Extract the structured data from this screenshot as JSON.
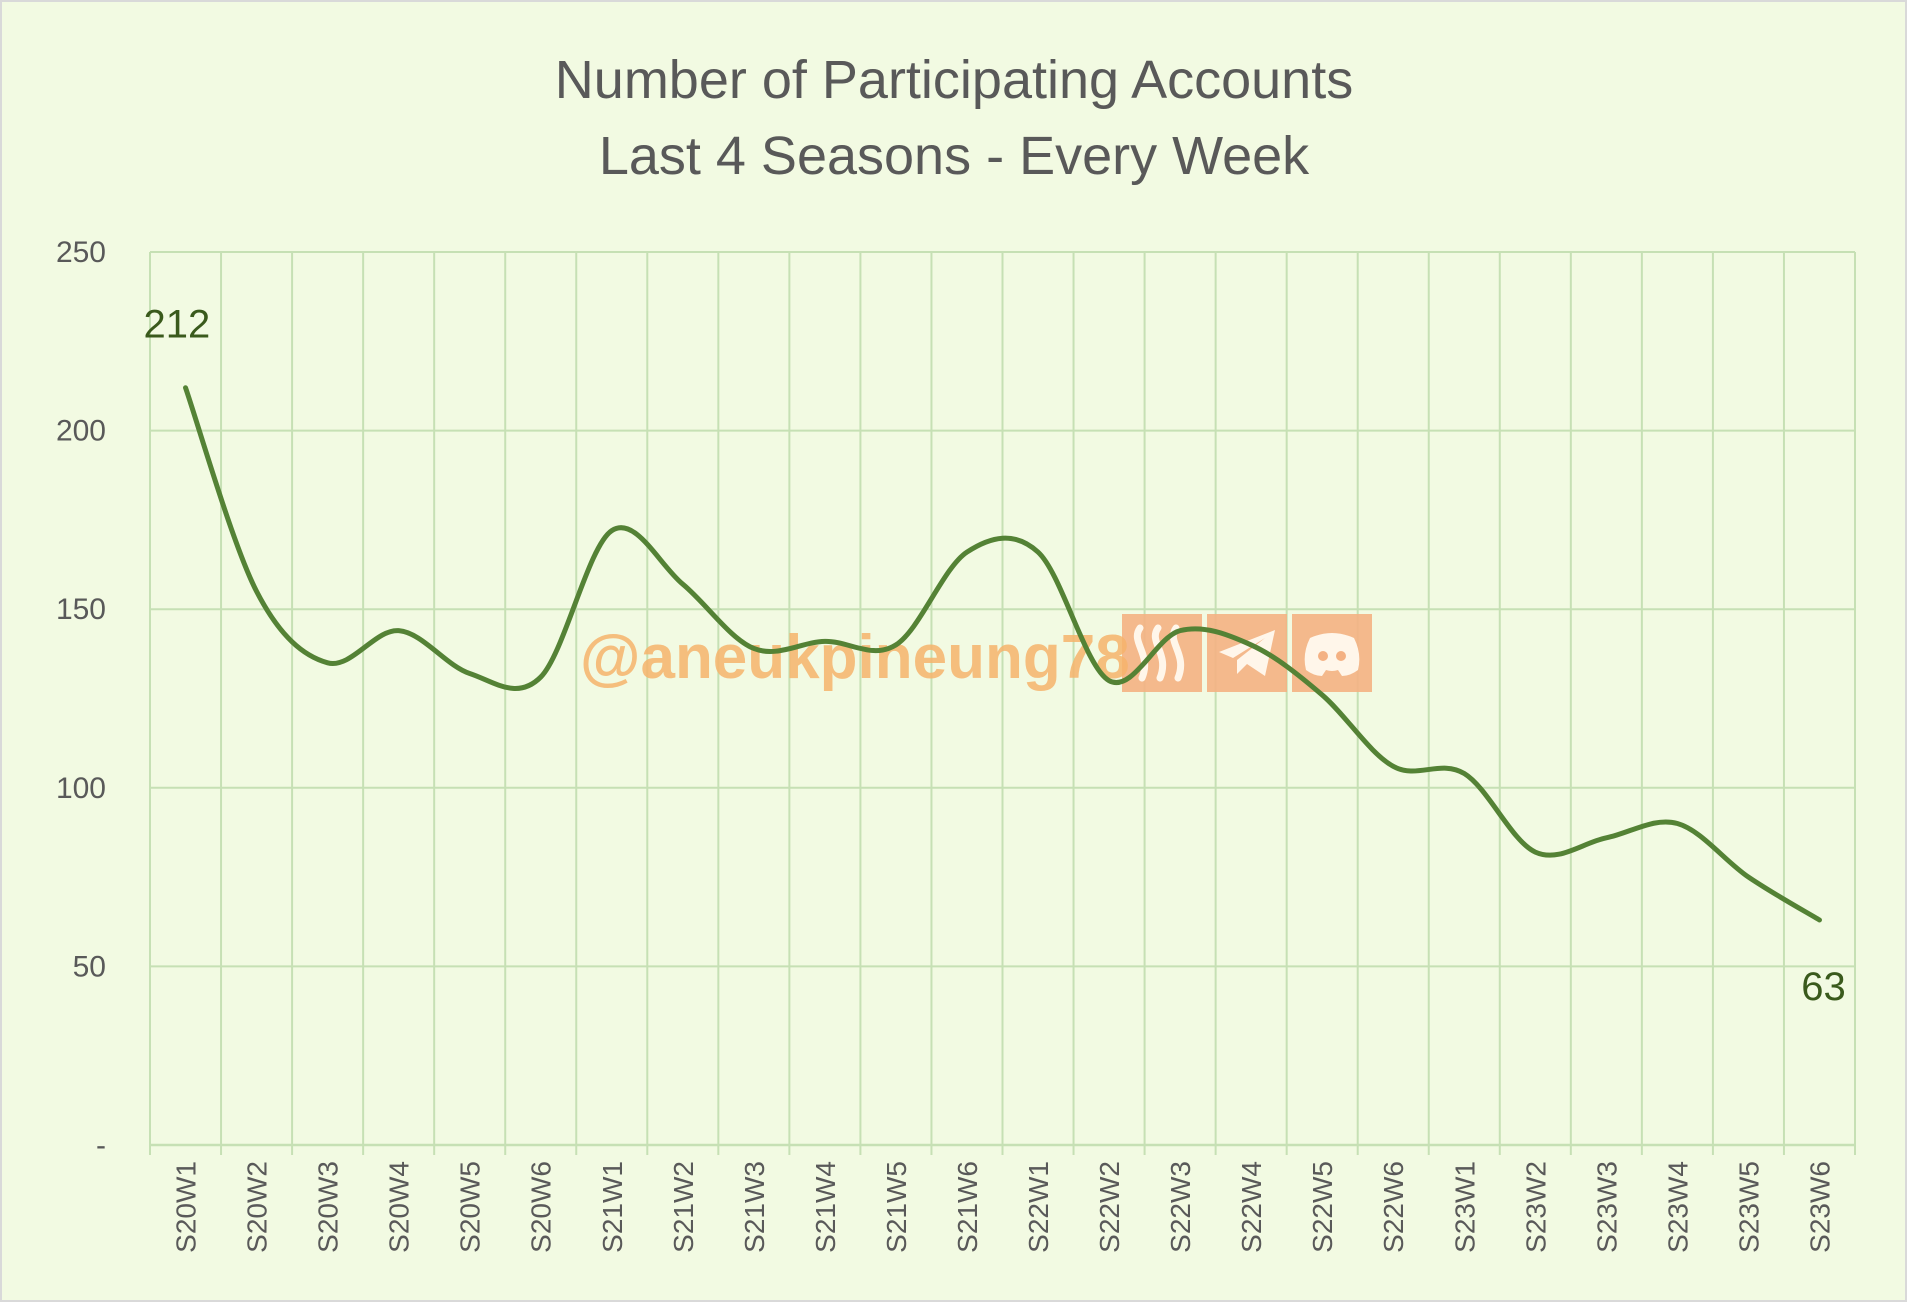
{
  "chart_data": {
    "type": "line",
    "title": [
      "Number of Participating Accounts",
      "Last 4 Seasons - Every Week"
    ],
    "xlabel": "",
    "ylabel": "",
    "ylim": [
      0,
      250
    ],
    "yticks": [
      0,
      50,
      100,
      150,
      200,
      250
    ],
    "ytick_labels": [
      "-",
      "50",
      "100",
      "150",
      "200",
      "250"
    ],
    "grid": true,
    "smooth": true,
    "categories": [
      "S20W1",
      "S20W2",
      "S20W3",
      "S20W4",
      "S20W5",
      "S20W6",
      "S21W1",
      "S21W2",
      "S21W3",
      "S21W4",
      "S21W5",
      "S21W6",
      "S22W1",
      "S22W2",
      "S22W3",
      "S22W4",
      "S22W5",
      "S22W6",
      "S23W1",
      "S23W2",
      "S23W3",
      "S23W4",
      "S23W5",
      "S23W6"
    ],
    "series": [
      {
        "name": "Participating Accounts",
        "color": "#548235",
        "values": [
          212,
          155,
          135,
          144,
          132,
          131,
          172,
          157,
          139,
          141,
          140,
          166,
          166,
          130,
          144,
          140,
          126,
          106,
          104,
          82,
          86,
          90,
          75,
          63
        ]
      }
    ],
    "data_labels": [
      {
        "index": 0,
        "text": "212"
      },
      {
        "index": 23,
        "text": "63"
      }
    ],
    "colors": {
      "background": "#f2fae2",
      "grid": "#c6e0b4",
      "text": "#595959",
      "label": "#3a5a1c",
      "watermark": "#f4b183"
    }
  },
  "watermark": {
    "text": "@aneukpineung78",
    "icons": [
      "steem-icon",
      "telegram-icon",
      "discord-icon"
    ]
  }
}
